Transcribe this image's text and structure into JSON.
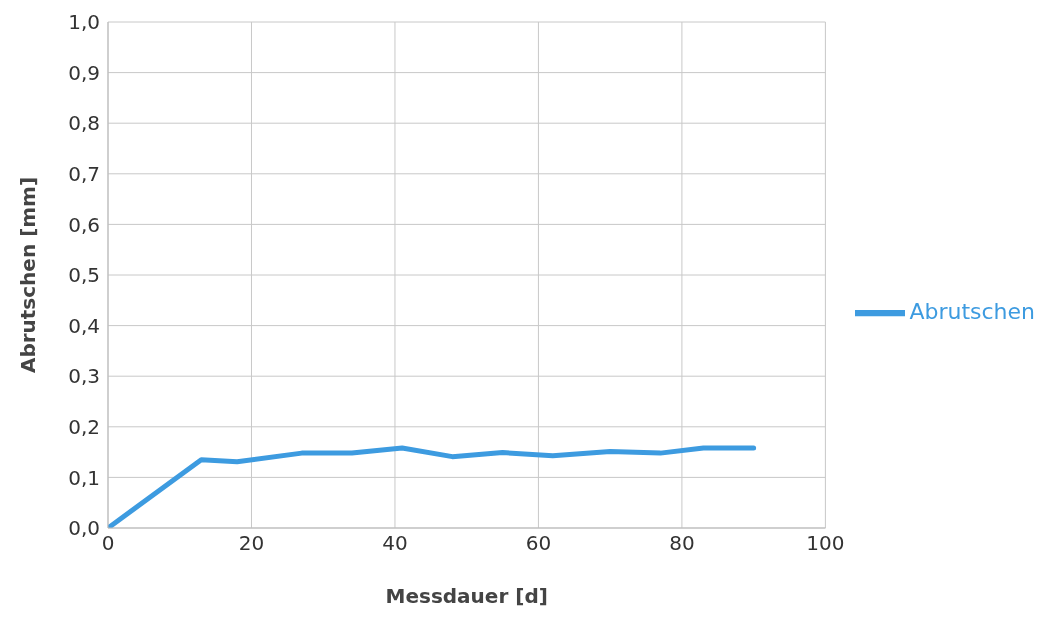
{
  "chart_data": {
    "type": "line",
    "xlabel": "Messdauer [d]",
    "ylabel": "Abrutschen [mm]",
    "series": [
      {
        "name": "Abrutschen",
        "color": "#3d9be0",
        "x": [
          0,
          13,
          18,
          27,
          34,
          41,
          48,
          55,
          62,
          70,
          77,
          83,
          90
        ],
        "values": [
          0,
          0.135,
          0.131,
          0.148,
          0.148,
          0.158,
          0.141,
          0.149,
          0.143,
          0.151,
          0.148,
          0.158,
          0.158
        ]
      }
    ],
    "xlim": [
      0,
      100
    ],
    "xticks": [
      0,
      20,
      40,
      60,
      80,
      100
    ],
    "ylim": [
      0,
      1
    ],
    "yticks": [
      {
        "value": 0,
        "label": "0,0"
      },
      {
        "value": 0.1,
        "label": "0,1"
      },
      {
        "value": 0.2,
        "label": "0,2"
      },
      {
        "value": 0.3,
        "label": "0,3"
      },
      {
        "value": 0.4,
        "label": "0,4"
      },
      {
        "value": 0.5,
        "label": "0,5"
      },
      {
        "value": 0.6,
        "label": "0,6"
      },
      {
        "value": 0.7,
        "label": "0,7"
      },
      {
        "value": 0.8,
        "label": "0,8"
      },
      {
        "value": 0.9,
        "label": "0,9"
      },
      {
        "value": 1,
        "label": "1,0"
      }
    ],
    "grid": true,
    "legend": "right",
    "marker": "none",
    "line_style": "solid"
  }
}
